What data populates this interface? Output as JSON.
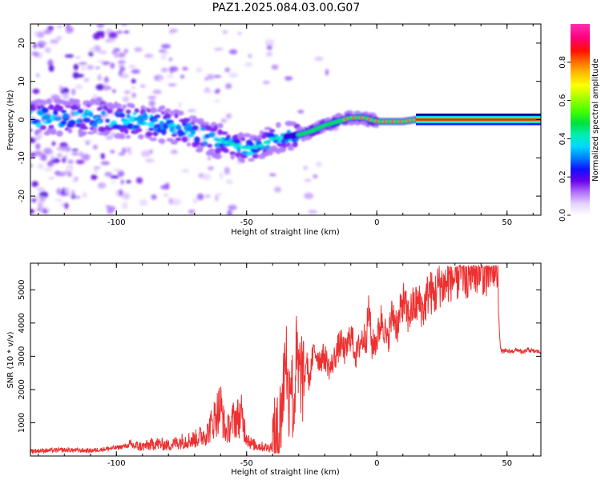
{
  "title": "PAZ1.2025.084.03.00.G07",
  "chart_data": [
    {
      "type": "heatmap",
      "name": "spectrogram",
      "xlabel": "Height of straight line (km)",
      "ylabel": "Frequency (Hz)",
      "xlim": [
        -133,
        63
      ],
      "ylim": [
        -25,
        25
      ],
      "x_ticks": [
        -100,
        -50,
        0,
        50
      ],
      "y_ticks": [
        -20,
        -10,
        0,
        10,
        20
      ],
      "colorbar": {
        "label": "Normalized spectral amplitude",
        "range": [
          0.0,
          1.0
        ],
        "ticks": [
          0.0,
          0.2,
          0.4,
          0.6,
          0.8
        ],
        "colormap": "gist_ncar-like (white-purple-blue-cyan-green-yellow-red-magenta)"
      },
      "ridge": {
        "height_km": [
          -133,
          -120,
          -110,
          -100,
          -90,
          -80,
          -70,
          -60,
          -55,
          -50,
          -45,
          -40,
          -35,
          -30,
          -25,
          -20,
          -15,
          -10,
          -5,
          0,
          5,
          10,
          15,
          20,
          30,
          40,
          50,
          63
        ],
        "frequency_hz": [
          0.5,
          0.5,
          0.5,
          0,
          -0.5,
          -1.5,
          -3.5,
          -5.5,
          -6.5,
          -7.5,
          -7,
          -5,
          -4.5,
          -4,
          -3,
          -1.5,
          -0.5,
          0.5,
          0.5,
          -0.5,
          -0.5,
          -0.5,
          0,
          0,
          0,
          0,
          0,
          0
        ]
      }
    },
    {
      "type": "line",
      "name": "snr",
      "xlabel": "Height of straight line (km)",
      "ylabel": "SNR (10 * v/v)",
      "xlim": [
        -133,
        63
      ],
      "ylim": [
        0,
        5800
      ],
      "x_ticks": [
        -100,
        -50,
        0,
        50
      ],
      "y_ticks": [
        1000,
        2000,
        3000,
        4000,
        5000
      ],
      "color": "#ee3030",
      "series": [
        {
          "x": [
            -133,
            -120,
            -110,
            -100,
            -95,
            -90,
            -85,
            -80,
            -75,
            -70,
            -65,
            -62,
            -60,
            -58,
            -55,
            -52,
            -50,
            -48,
            -45,
            -42,
            -40,
            -38,
            -36,
            -35,
            -34,
            -33,
            -32,
            -31,
            -30,
            -29,
            -28,
            -27,
            -26,
            -25,
            -24,
            -22,
            -20,
            -18,
            -16,
            -14,
            -12,
            -10,
            -8,
            -6,
            -4,
            -3,
            -2,
            0,
            2,
            4,
            6,
            8,
            10,
            12,
            14,
            16,
            18,
            20,
            22,
            24,
            26,
            28,
            30,
            32,
            34,
            36,
            38,
            40,
            42,
            44,
            46,
            46.5,
            47,
            47.5,
            48,
            50,
            52,
            54,
            56,
            58,
            60,
            62,
            63
          ],
          "y": [
            150,
            180,
            160,
            250,
            320,
            280,
            380,
            320,
            450,
            500,
            700,
            1200,
            1500,
            700,
            1100,
            1200,
            600,
            350,
            300,
            250,
            300,
            500,
            1800,
            3500,
            1600,
            2800,
            1200,
            3000,
            2300,
            2600,
            2000,
            3000,
            2200,
            2800,
            3200,
            2900,
            3000,
            2600,
            3000,
            3400,
            3100,
            3700,
            3000,
            3500,
            3600,
            4500,
            3300,
            3500,
            4200,
            3400,
            4300,
            3900,
            4700,
            4200,
            4500,
            4600,
            4400,
            5000,
            4800,
            5200,
            5100,
            5400,
            5300,
            5500,
            5450,
            5550,
            5500,
            5600,
            5550,
            5650,
            5600,
            5650,
            3900,
            3200,
            3150,
            3150,
            3150,
            3200,
            3100,
            3200,
            3150,
            3150,
            3100
          ]
        }
      ]
    }
  ]
}
